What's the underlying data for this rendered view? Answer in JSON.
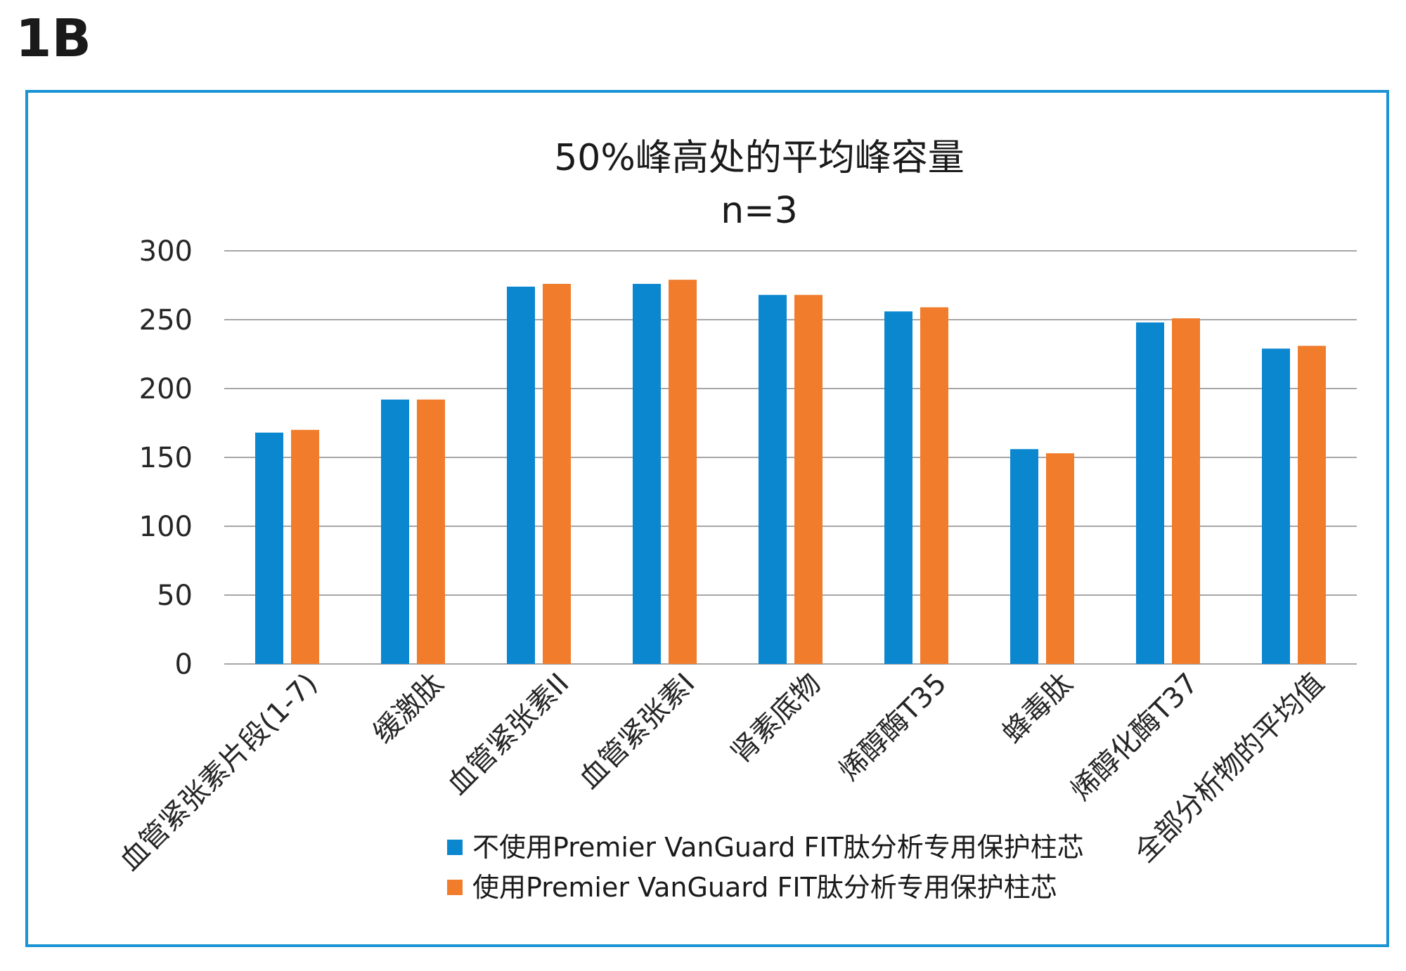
{
  "panel_label": "1B",
  "colors": {
    "series1": "#0b87d0",
    "series2": "#f07c2c",
    "frame": "#1a93d3"
  },
  "chart_data": {
    "type": "bar",
    "title": "50%峰高处的平均峰容量",
    "subtitle": "n=3",
    "xlabel": "",
    "ylabel": "",
    "ylim": [
      0,
      300
    ],
    "yticks": [
      "0",
      "50",
      "100",
      "150",
      "200",
      "250",
      "300"
    ],
    "grid": true,
    "legend_position": "bottom",
    "categories": [
      "血管紧张素片段(1-7)",
      "缓激肽",
      "血管紧张素II",
      "血管紧张素I",
      "肾素底物",
      "烯醇酶T35",
      "蜂毒肽",
      "烯醇化酶T37",
      "全部分析物的平均值"
    ],
    "series": [
      {
        "name": "不使用Premier VanGuard FIT肽分析专用保护柱芯",
        "values": [
          168,
          192,
          274,
          276,
          268,
          256,
          156,
          248,
          229
        ]
      },
      {
        "name": "使用Premier VanGuard FIT肽分析专用保护柱芯",
        "values": [
          170,
          192,
          276,
          279,
          268,
          259,
          153,
          251,
          231
        ]
      }
    ]
  }
}
